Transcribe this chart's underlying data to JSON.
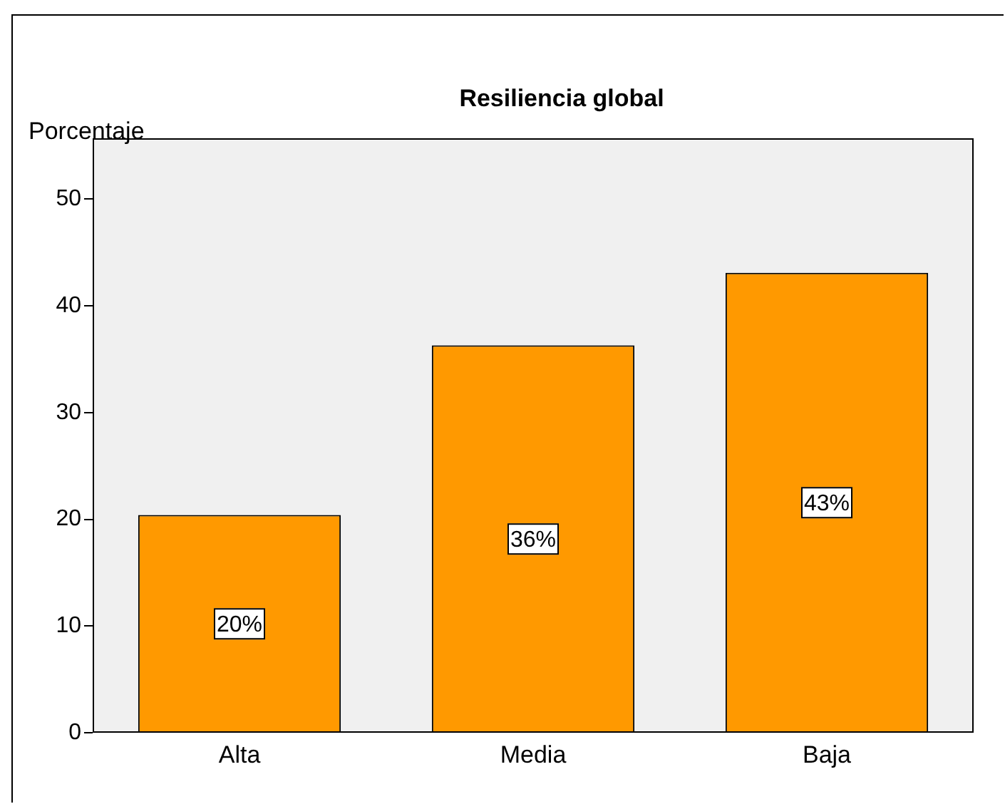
{
  "chart_data": {
    "type": "bar",
    "title": "Resiliencia global",
    "ylabel": "Porcentaje",
    "categories": [
      "Alta",
      "Media",
      "Baja"
    ],
    "values": [
      20.4,
      36.3,
      43.1
    ],
    "color": "#ff9900",
    "value_labels": [
      "20%",
      "36%",
      "43%"
    ],
    "ylim": [
      0,
      55.7
    ],
    "yticks": [
      0,
      10,
      20,
      30,
      40,
      50
    ],
    "grid": false,
    "legend": false
  }
}
